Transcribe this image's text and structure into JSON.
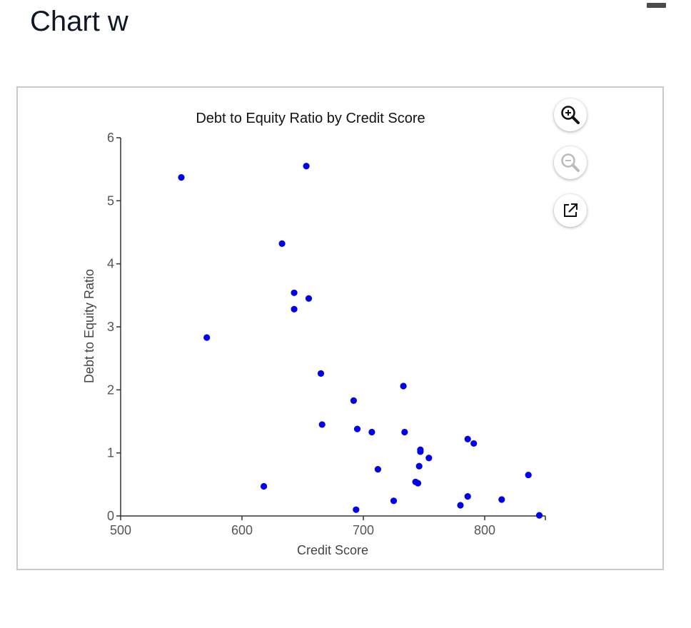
{
  "page": {
    "title": "Chart w"
  },
  "toolbar": {
    "zoom_in_icon": "zoom-in-icon",
    "zoom_out_icon": "zoom-out-icon",
    "open_external_icon": "open-external-icon"
  },
  "colors": {
    "point": "#0000ee",
    "axis": "#333333",
    "text": "#222222"
  },
  "chart_data": {
    "type": "scatter",
    "title": "Debt to Equity Ratio by Credit Score",
    "xlabel": "Credit Score",
    "ylabel": "Debt to Equity Ratio",
    "xlim": [
      500,
      850
    ],
    "ylim": [
      0,
      6
    ],
    "xticks": [
      500,
      600,
      700,
      800
    ],
    "yticks": [
      0,
      1,
      2,
      3,
      4,
      5,
      6
    ],
    "grid": false,
    "legend": "none",
    "points": [
      {
        "x": 550,
        "y": 5.37
      },
      {
        "x": 571,
        "y": 2.83
      },
      {
        "x": 618,
        "y": 0.47
      },
      {
        "x": 633,
        "y": 4.32
      },
      {
        "x": 643,
        "y": 3.54
      },
      {
        "x": 643,
        "y": 3.28
      },
      {
        "x": 653,
        "y": 5.55
      },
      {
        "x": 655,
        "y": 3.45
      },
      {
        "x": 665,
        "y": 2.26
      },
      {
        "x": 666,
        "y": 1.45
      },
      {
        "x": 692,
        "y": 1.83
      },
      {
        "x": 694,
        "y": 0.1
      },
      {
        "x": 695,
        "y": 1.38
      },
      {
        "x": 707,
        "y": 1.33
      },
      {
        "x": 712,
        "y": 0.74
      },
      {
        "x": 725,
        "y": 0.24
      },
      {
        "x": 733,
        "y": 2.06
      },
      {
        "x": 734,
        "y": 1.33
      },
      {
        "x": 743,
        "y": 0.54
      },
      {
        "x": 745,
        "y": 0.52
      },
      {
        "x": 746,
        "y": 0.79
      },
      {
        "x": 747,
        "y": 1.02
      },
      {
        "x": 747,
        "y": 1.05
      },
      {
        "x": 754,
        "y": 0.92
      },
      {
        "x": 780,
        "y": 0.17
      },
      {
        "x": 786,
        "y": 1.22
      },
      {
        "x": 786,
        "y": 0.31
      },
      {
        "x": 791,
        "y": 1.15
      },
      {
        "x": 814,
        "y": 0.26
      },
      {
        "x": 836,
        "y": 0.65
      },
      {
        "x": 845,
        "y": 0.01
      }
    ]
  }
}
